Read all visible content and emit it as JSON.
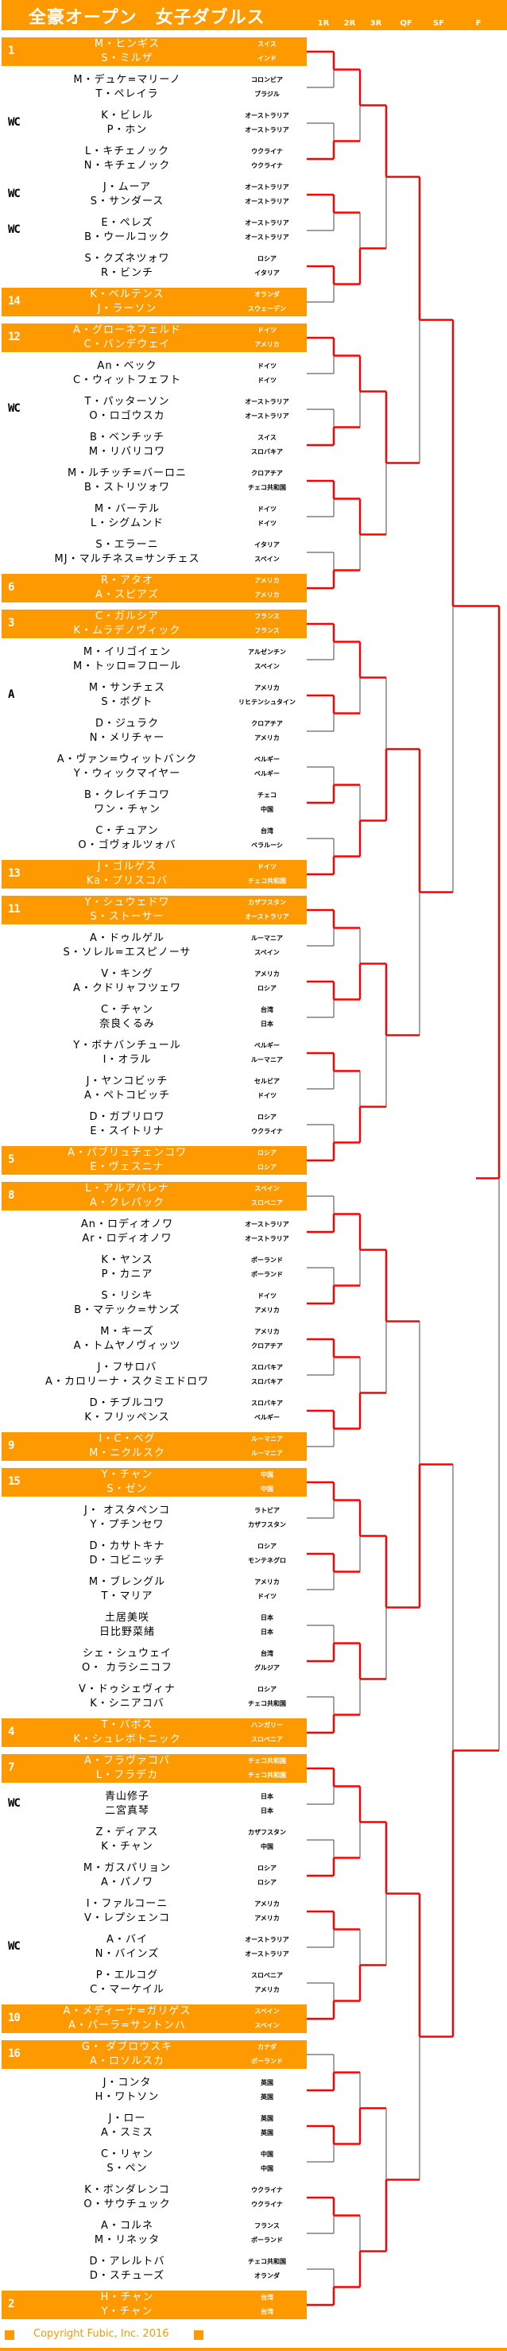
{
  "header": {
    "title": "全豪オープン　女子ダブルス",
    "rounds": [
      "1R",
      "2R",
      "3R",
      "QF",
      "SF",
      "F"
    ]
  },
  "colors": {
    "accent": "#FF9900",
    "winner_line": "#FF0000",
    "loser_line": "#666666"
  },
  "teams": [
    {
      "seed": "1",
      "p1": "M・ヒンギス",
      "c1": "スイス",
      "p2": "S・ミルザ",
      "c2": "インド"
    },
    {
      "seed": "",
      "p1": "M・デュケ=マリーノ",
      "c1": "コロンビア",
      "p2": "T・ペレイラ",
      "c2": "ブラジル"
    },
    {
      "seed": "WC",
      "p1": "K・ビレル",
      "c1": "オーストラリア",
      "p2": "P・ホン",
      "c2": "オーストラリア"
    },
    {
      "seed": "",
      "p1": "L・キチェノック",
      "c1": "ウクライナ",
      "p2": "N・キチェノック",
      "c2": "ウクライナ"
    },
    {
      "seed": "WC",
      "p1": "J・ムーア",
      "c1": "オーストラリア",
      "p2": "S・サンダース",
      "c2": "オーストラリア"
    },
    {
      "seed": "WC",
      "p1": "E・ペレズ",
      "c1": "オーストラリア",
      "p2": "B・ウールコック",
      "c2": "オーストラリア"
    },
    {
      "seed": "",
      "p1": "S・クズネツォワ",
      "c1": "ロシア",
      "p2": "R・ビンチ",
      "c2": "イタリア"
    },
    {
      "seed": "14",
      "p1": "K・ベルテンス",
      "c1": "オランダ",
      "p2": "J・ラーソン",
      "c2": "スウェーデン"
    },
    {
      "seed": "12",
      "p1": "A・グローネフェルド",
      "c1": "ドイツ",
      "p2": "C・バンデウェイ",
      "c2": "アメリカ"
    },
    {
      "seed": "",
      "p1": "An・ベック",
      "c1": "ドイツ",
      "p2": "C・ウィットフェフト",
      "c2": "ドイツ"
    },
    {
      "seed": "WC",
      "p1": "T・パッターソン",
      "c1": "オーストラリア",
      "p2": "O・ロゴウスカ",
      "c2": "オーストラリア"
    },
    {
      "seed": "",
      "p1": "B・ベンチッチ",
      "c1": "スイス",
      "p2": "M・リバリコワ",
      "c2": "スロバキア"
    },
    {
      "seed": "",
      "p1": "M・ルチッチ=バーロニ",
      "c1": "クロアチア",
      "p2": "B・ストリツォワ",
      "c2": "チェコ共和国"
    },
    {
      "seed": "",
      "p1": "M・バーテル",
      "c1": "ドイツ",
      "p2": "L・シグムンド",
      "c2": "ドイツ"
    },
    {
      "seed": "",
      "p1": "S・エラーニ",
      "c1": "イタリア",
      "p2": "MJ・マルチネス=サンチェス",
      "c2": "スペイン"
    },
    {
      "seed": "6",
      "p1": "R・アタオ",
      "c1": "アメリカ",
      "p2": "A・スピアズ",
      "c2": "アメリカ"
    },
    {
      "seed": "3",
      "p1": "C・ガルシア",
      "c1": "フランス",
      "p2": "K・ムラデノヴィック",
      "c2": "フランス"
    },
    {
      "seed": "",
      "p1": "M・イリゴイェン",
      "c1": "アルゼンチン",
      "p2": "M・トッロ=フロール",
      "c2": "スペイン"
    },
    {
      "seed": "A",
      "p1": "M・サンチェス",
      "c1": "アメリカ",
      "p2": "S・ボグト",
      "c2": "リヒテンシュタイン"
    },
    {
      "seed": "",
      "p1": "D・ジュラク",
      "c1": "クロアチア",
      "p2": "N・メリチャー",
      "c2": "アメリカ"
    },
    {
      "seed": "",
      "p1": "A・ヴァン=ウィットバンク",
      "c1": "ベルギー",
      "p2": "Y・ウィックマイヤー",
      "c2": "ベルギー"
    },
    {
      "seed": "",
      "p1": "B・クレイチコワ",
      "c1": "チェコ",
      "p2": "ワン・チャン",
      "c2": "中国"
    },
    {
      "seed": "",
      "p1": "C・チュアン",
      "c1": "台湾",
      "p2": "O・ゴヴォルツォバ",
      "c2": "ベラルーシ"
    },
    {
      "seed": "13",
      "p1": "J・ゴルゲス",
      "c1": "ドイツ",
      "p2": "Ka・プリスコバ",
      "c2": "チェコ共和国"
    },
    {
      "seed": "11",
      "p1": "Y・シュウェドワ",
      "c1": "カザフスタン",
      "p2": "S・ストーサー",
      "c2": "オーストラリア"
    },
    {
      "seed": "",
      "p1": "A・ドゥルゲル",
      "c1": "ルーマニア",
      "p2": "S・ソレル=エスピノーサ",
      "c2": "スペイン"
    },
    {
      "seed": "",
      "p1": "V・キング",
      "c1": "アメリカ",
      "p2": "A・クドリャフツェワ",
      "c2": "ロシア"
    },
    {
      "seed": "",
      "p1": "C・チャン",
      "c1": "台湾",
      "p2": "奈良くるみ",
      "c2": "日本"
    },
    {
      "seed": "",
      "p1": "Y・ボナバンチュール",
      "c1": "ベルギー",
      "p2": "I・オラル",
      "c2": "ルーマニア"
    },
    {
      "seed": "",
      "p1": "J・ヤンコビッチ",
      "c1": "セルビア",
      "p2": "A・ペトコビッチ",
      "c2": "ドイツ"
    },
    {
      "seed": "",
      "p1": "D・ガブリロワ",
      "c1": "ロシア",
      "p2": "E・スイトリナ",
      "c2": "ウクライナ"
    },
    {
      "seed": "5",
      "p1": "A・パブリュチェンコワ",
      "c1": "ロシア",
      "p2": "E・ヴェスニナ",
      "c2": "ロシア"
    },
    {
      "seed": "8",
      "p1": "L・アルアバレナ",
      "c1": "スペイン",
      "p2": "A・クレパック",
      "c2": "スロベニア"
    },
    {
      "seed": "",
      "p1": "An・ロディオノワ",
      "c1": "オーストラリア",
      "p2": "Ar・ロディオノワ",
      "c2": "オーストラリア"
    },
    {
      "seed": "",
      "p1": "K・ヤンス",
      "c1": "ポーランド",
      "p2": "P・カニア",
      "c2": "ポーランド"
    },
    {
      "seed": "",
      "p1": "S・リシキ",
      "c1": "ドイツ",
      "p2": "B・マテック=サンズ",
      "c2": "アメリカ"
    },
    {
      "seed": "",
      "p1": "M・キーズ",
      "c1": "アメリカ",
      "p2": "A・トムヤノヴィッツ",
      "c2": "クロアチア"
    },
    {
      "seed": "",
      "p1": "J・フサロバ",
      "c1": "スロバキア",
      "p2": "A・カロリーナ・スクミエドロワ",
      "c2": "スロバキア"
    },
    {
      "seed": "",
      "p1": "D・チブルコワ",
      "c1": "スロバキア",
      "p2": "K・フリッペンス",
      "c2": "ベルギー"
    },
    {
      "seed": "9",
      "p1": "I・C・ベグ",
      "c1": "ルーマニア",
      "p2": "M・ニクルスク",
      "c2": "ルーマニア"
    },
    {
      "seed": "15",
      "p1": "Y・チャン",
      "c1": "中国",
      "p2": "S・ゼン",
      "c2": "中国"
    },
    {
      "seed": "",
      "p1": "J・ オスタペンコ",
      "c1": "ラトビア",
      "p2": "Y・プチンセワ",
      "c2": "カザフスタン"
    },
    {
      "seed": "",
      "p1": "D・カサトキナ",
      "c1": "ロシア",
      "p2": "D・コビニッチ",
      "c2": "モンテネグロ"
    },
    {
      "seed": "",
      "p1": "M・ブレングル",
      "c1": "アメリカ",
      "p2": "T・マリア",
      "c2": "ドイツ"
    },
    {
      "seed": "",
      "p1": "土居美咲",
      "c1": "日本",
      "p2": "日比野菜緒",
      "c2": "日本"
    },
    {
      "seed": "",
      "p1": "シェ・シュウェイ",
      "c1": "台湾",
      "p2": "O・ カラシニコフ",
      "c2": "グルジア"
    },
    {
      "seed": "",
      "p1": "V・ドゥシェヴィナ",
      "c1": "ロシア",
      "p2": "K・シニアコバ",
      "c2": "チェコ共和国"
    },
    {
      "seed": "4",
      "p1": "T・バボス",
      "c1": "ハンガリー",
      "p2": "K・シュレボトニック",
      "c2": "スロベニア"
    },
    {
      "seed": "7",
      "p1": "A・フラヴァコバ",
      "c1": "チェコ共和国",
      "p2": "L・フラデカ",
      "c2": "チェコ共和国"
    },
    {
      "seed": "WC",
      "p1": "青山修子",
      "c1": "日本",
      "p2": "二宮真琴",
      "c2": "日本"
    },
    {
      "seed": "",
      "p1": "Z・ディアス",
      "c1": "カザフスタン",
      "p2": "K・チャン",
      "c2": "中国"
    },
    {
      "seed": "",
      "p1": "M・ガスパリョン",
      "c1": "ロシア",
      "p2": "A・パノワ",
      "c2": "ロシア"
    },
    {
      "seed": "",
      "p1": "I・ファルコーニ",
      "c1": "アメリカ",
      "p2": "V・レプシェンコ",
      "c2": "アメリカ"
    },
    {
      "seed": "WC",
      "p1": "A・バイ",
      "c1": "オーストラリア",
      "p2": "N・バインズ",
      "c2": "オーストラリア"
    },
    {
      "seed": "",
      "p1": "P・エルコグ",
      "c1": "スロベニア",
      "p2": "C・マーケイル",
      "c2": "アメリカ"
    },
    {
      "seed": "10",
      "p1": "A・メディーナ=ガリゲス",
      "c1": "スペイン",
      "p2": "A・パーラ=サントンハ",
      "c2": "スペイン"
    },
    {
      "seed": "16",
      "p1": "G・ ダブロウスキ",
      "c1": "カナダ",
      "p2": "A・ロソルスカ",
      "c2": "ポーランド"
    },
    {
      "seed": "",
      "p1": "J・コンタ",
      "c1": "英国",
      "p2": "H・ワトソン",
      "c2": "英国"
    },
    {
      "seed": "",
      "p1": "J・ロー",
      "c1": "英国",
      "p2": "A・スミス",
      "c2": "英国"
    },
    {
      "seed": "",
      "p1": "C・リャン",
      "c1": "中国",
      "p2": "S・ペン",
      "c2": "中国"
    },
    {
      "seed": "",
      "p1": "K・ボンダレンコ",
      "c1": "ウクライナ",
      "p2": "O・サウチュック",
      "c2": "ウクライナ"
    },
    {
      "seed": "",
      "p1": "A・コルネ",
      "c1": "フランス",
      "p2": "M・リネッタ",
      "c2": "ポーランド"
    },
    {
      "seed": "",
      "p1": "D・アレルトバ",
      "c1": "チェコ共和国",
      "p2": "D・スチューズ",
      "c2": "オランダ"
    },
    {
      "seed": "2",
      "p1": "H・チャン",
      "c1": "台湾",
      "p2": "Y・チャン",
      "c2": "台湾"
    }
  ],
  "results": {
    "1R": [
      0,
      3,
      4,
      6,
      8,
      11,
      12,
      15,
      16,
      18,
      21,
      23,
      24,
      26,
      28,
      31,
      33,
      35,
      36,
      38,
      40,
      42,
      45,
      47,
      48,
      51,
      52,
      55,
      57,
      58,
      60,
      63
    ],
    "2R": [
      0,
      6,
      8,
      12,
      16,
      23,
      26,
      31,
      33,
      38,
      40,
      45,
      48,
      55,
      58,
      63
    ],
    "3R": [
      0,
      8,
      23,
      26,
      33,
      40,
      48,
      63
    ],
    "QF": [
      0,
      23,
      40,
      48
    ],
    "SF": [
      0,
      48
    ],
    "F": [
      0
    ]
  },
  "footer": {
    "copyright": "Copyright  Fubic, Inc. 2016"
  }
}
